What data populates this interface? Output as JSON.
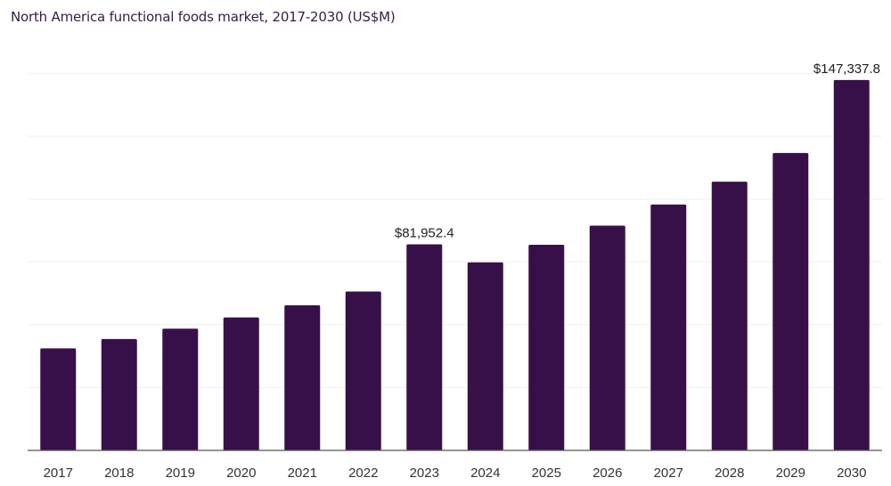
{
  "chart_data": {
    "type": "bar",
    "title": "North America functional foods market, 2017-2030 (US$M)",
    "xlabel": "",
    "ylabel": "",
    "categories": [
      "2017",
      "2018",
      "2019",
      "2020",
      "2021",
      "2022",
      "2023",
      "2024",
      "2025",
      "2026",
      "2027",
      "2028",
      "2029",
      "2030"
    ],
    "values": [
      40600,
      44300,
      48400,
      52900,
      57700,
      63200,
      81952.4,
      74800,
      81800,
      89400,
      97800,
      106900,
      118300,
      147337.8
    ],
    "data_labels": [
      {
        "index": 6,
        "text": "$81,952.4"
      },
      {
        "index": 13,
        "text": "$147,337.8"
      }
    ],
    "ylim": [
      0,
      165000
    ],
    "grid": true,
    "legend": "none",
    "bar_color": "#381049",
    "gridline_color": "#efefef",
    "axis_color": "#555555"
  }
}
